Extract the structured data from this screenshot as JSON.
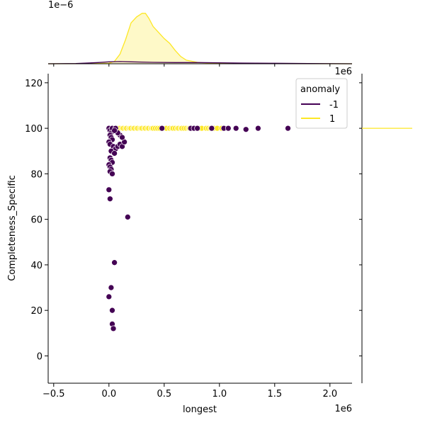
{
  "chart_data": {
    "type": "scatter",
    "subtype": "jointplot",
    "xlabel": "longest",
    "ylabel": "Completeness_Specific",
    "x_offset_label": "1e6",
    "y_offset_label": "",
    "xlim": [
      -0.55,
      2.2
    ],
    "ylim": [
      -12,
      124
    ],
    "x_ticks": [
      -0.5,
      0.0,
      0.5,
      1.0,
      1.5,
      2.0
    ],
    "x_tick_labels": [
      "−0.5",
      "0.0",
      "0.5",
      "1.0",
      "1.5",
      "2.0"
    ],
    "y_ticks": [
      0,
      20,
      40,
      60,
      80,
      100,
      120
    ],
    "y_tick_labels": [
      "0",
      "20",
      "40",
      "60",
      "80",
      "100",
      "120"
    ],
    "grid": false,
    "legend": {
      "title": "anomaly",
      "placement": "top-right",
      "entries": [
        {
          "label": "-1",
          "color": "#440154"
        },
        {
          "label": "1",
          "color": "#fde725"
        }
      ]
    },
    "series": [
      {
        "name": "1",
        "color": "#fde725",
        "points": [
          [
            0.08,
            100
          ],
          [
            0.1,
            100
          ],
          [
            0.12,
            100
          ],
          [
            0.13,
            100
          ],
          [
            0.15,
            100
          ],
          [
            0.16,
            100
          ],
          [
            0.18,
            100
          ],
          [
            0.19,
            100
          ],
          [
            0.2,
            100
          ],
          [
            0.22,
            100
          ],
          [
            0.23,
            100
          ],
          [
            0.25,
            100
          ],
          [
            0.26,
            100
          ],
          [
            0.28,
            100
          ],
          [
            0.29,
            100
          ],
          [
            0.3,
            100
          ],
          [
            0.32,
            100
          ],
          [
            0.33,
            100
          ],
          [
            0.35,
            100
          ],
          [
            0.36,
            100
          ],
          [
            0.38,
            100
          ],
          [
            0.39,
            100
          ],
          [
            0.4,
            100
          ],
          [
            0.42,
            100
          ],
          [
            0.44,
            100
          ],
          [
            0.46,
            100
          ],
          [
            0.52,
            100
          ],
          [
            0.55,
            100
          ],
          [
            0.57,
            100
          ],
          [
            0.58,
            100
          ],
          [
            0.6,
            100
          ],
          [
            0.62,
            100
          ],
          [
            0.63,
            100
          ],
          [
            0.65,
            100
          ],
          [
            0.66,
            100
          ],
          [
            0.68,
            100
          ],
          [
            0.7,
            100
          ],
          [
            0.72,
            100
          ],
          [
            0.73,
            100
          ],
          [
            0.75,
            100
          ],
          [
            0.78,
            100
          ],
          [
            0.8,
            100
          ],
          [
            0.82,
            100
          ],
          [
            0.84,
            100
          ],
          [
            0.88,
            100
          ],
          [
            0.9,
            100
          ],
          [
            0.92,
            100
          ],
          [
            0.95,
            100
          ],
          [
            0.98,
            100
          ],
          [
            1.02,
            100
          ]
        ]
      },
      {
        "name": "-1",
        "color": "#440154",
        "points": [
          [
            0.0,
            100
          ],
          [
            0.01,
            99
          ],
          [
            0.02,
            98
          ],
          [
            0.01,
            97
          ],
          [
            0.02,
            96
          ],
          [
            0.03,
            95
          ],
          [
            0.0,
            94
          ],
          [
            0.01,
            93
          ],
          [
            0.04,
            92
          ],
          [
            0.06,
            91
          ],
          [
            0.08,
            92
          ],
          [
            0.1,
            93
          ],
          [
            0.12,
            92
          ],
          [
            0.14,
            94
          ],
          [
            0.02,
            90
          ],
          [
            0.05,
            89
          ],
          [
            0.01,
            87
          ],
          [
            0.02,
            86
          ],
          [
            0.03,
            85
          ],
          [
            0.0,
            84
          ],
          [
            0.01,
            83
          ],
          [
            0.02,
            82
          ],
          [
            0.01,
            81
          ],
          [
            0.03,
            80
          ],
          [
            0.0,
            73
          ],
          [
            0.01,
            69
          ],
          [
            0.17,
            61
          ],
          [
            0.05,
            41
          ],
          [
            0.02,
            30
          ],
          [
            0.0,
            26
          ],
          [
            0.03,
            20
          ],
          [
            0.03,
            14
          ],
          [
            0.04,
            12
          ],
          [
            0.03,
            100
          ],
          [
            0.06,
            100
          ],
          [
            0.48,
            100
          ],
          [
            0.74,
            100
          ],
          [
            0.77,
            100
          ],
          [
            0.8,
            100
          ],
          [
            0.93,
            100
          ],
          [
            1.04,
            100
          ],
          [
            1.08,
            100
          ],
          [
            1.15,
            100
          ],
          [
            1.24,
            99.5
          ],
          [
            1.35,
            100
          ],
          [
            1.62,
            100
          ],
          [
            0.1,
            97
          ],
          [
            0.08,
            98
          ],
          [
            0.05,
            99
          ],
          [
            0.12,
            96
          ]
        ]
      }
    ],
    "marginal_x": {
      "offset_label": "1e−6",
      "curves": [
        {
          "name": "1",
          "color": "#fde725",
          "filled": true,
          "x": [
            -0.55,
            -0.2,
            0.0,
            0.05,
            0.1,
            0.15,
            0.2,
            0.25,
            0.3,
            0.33,
            0.36,
            0.4,
            0.45,
            0.5,
            0.55,
            0.6,
            0.65,
            0.7,
            0.8,
            0.9,
            1.0,
            1.2,
            1.5,
            2.2
          ],
          "y": [
            0,
            0.002,
            0.02,
            0.1,
            0.4,
            1.0,
            1.7,
            1.95,
            2.1,
            2.1,
            1.9,
            1.55,
            1.3,
            1.05,
            0.85,
            0.55,
            0.3,
            0.15,
            0.06,
            0.03,
            0.02,
            0.008,
            0.002,
            0
          ]
        },
        {
          "name": "-1",
          "color": "#440154",
          "filled": false,
          "x": [
            -0.55,
            -0.3,
            -0.1,
            0.0,
            0.1,
            0.2,
            0.4,
            0.6,
            0.8,
            1.0,
            1.2,
            1.5,
            1.8,
            2.2
          ],
          "y": [
            0,
            0.01,
            0.05,
            0.08,
            0.09,
            0.08,
            0.06,
            0.05,
            0.05,
            0.04,
            0.03,
            0.02,
            0.01,
            0
          ]
        }
      ],
      "ymax": 2.3
    },
    "marginal_y": {
      "curves": [
        {
          "name": "1",
          "color": "#fde725",
          "at": 100,
          "extent": 1.0
        },
        {
          "name": "-1",
          "color": "#440154",
          "at": 100,
          "extent": 0.0
        }
      ]
    }
  }
}
